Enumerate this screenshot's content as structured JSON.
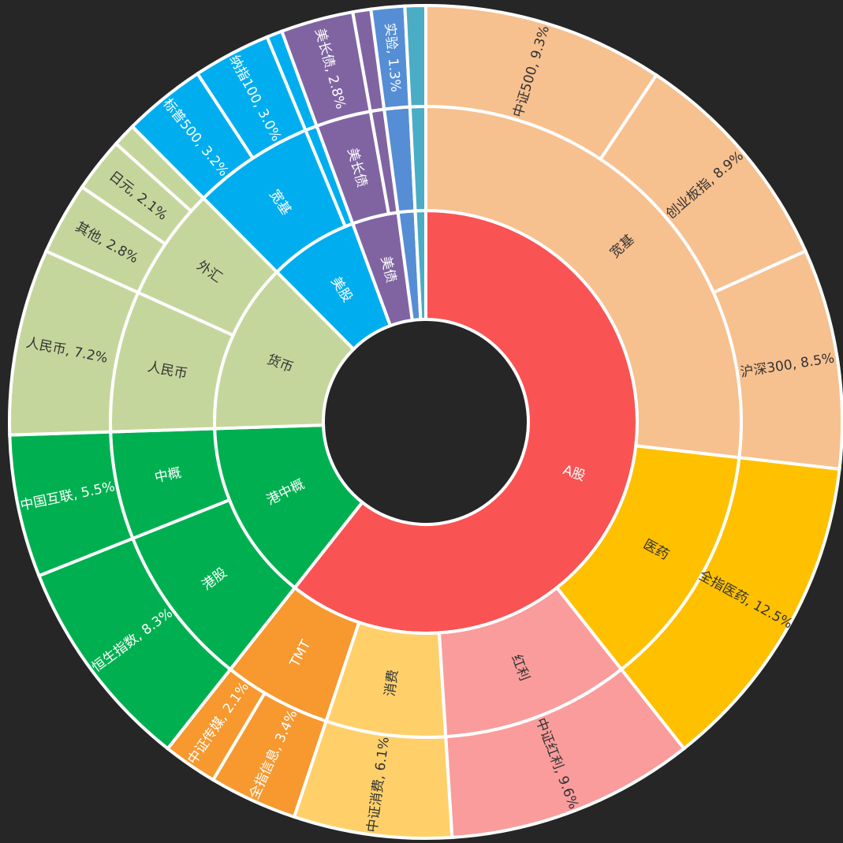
{
  "chart_data": {
    "type": "sunburst",
    "title": "",
    "rings": [
      {
        "label": "A股",
        "parent": null,
        "level": 1,
        "color": "#F95353",
        "text_color": "#FFFFFF"
      },
      {
        "label": "宽基",
        "parent": "A股",
        "level": 2,
        "color": "#F7C08F",
        "text_color": "#333333"
      },
      {
        "label": "中证500, 9.3%",
        "parent": "宽基",
        "level": 3,
        "value": 9.3,
        "color": "#F7C08F",
        "text_color": "#333333"
      },
      {
        "label": "创业板指, 8.9%",
        "parent": "宽基",
        "level": 3,
        "value": 8.9,
        "color": "#F7C08F",
        "text_color": "#333333"
      },
      {
        "label": "沪深300, 8.5%",
        "parent": "宽基",
        "level": 3,
        "value": 8.5,
        "color": "#F7C08F",
        "text_color": "#333333"
      },
      {
        "label": "医药",
        "parent": "A股",
        "level": 2,
        "color": "#FFC000",
        "text_color": "#333333"
      },
      {
        "label": "全指医药, 12.5%",
        "parent": "医药",
        "level": 3,
        "value": 12.5,
        "color": "#FFC000",
        "text_color": "#333333"
      },
      {
        "label": "红利",
        "parent": "A股",
        "level": 2,
        "color": "#FA9C9C",
        "text_color": "#333333"
      },
      {
        "label": "中证红利, 9.6%",
        "parent": "红利",
        "level": 3,
        "value": 9.6,
        "color": "#FA9C9C",
        "text_color": "#333333"
      },
      {
        "label": "消费",
        "parent": "A股",
        "level": 2,
        "color": "#FFD06A",
        "text_color": "#333333"
      },
      {
        "label": "中证消费, 6.1%",
        "parent": "消费",
        "level": 3,
        "value": 6.1,
        "color": "#FFD06A",
        "text_color": "#333333"
      },
      {
        "label": "TMT",
        "parent": "A股",
        "level": 2,
        "color": "#F7992F",
        "text_color": "#FFFFFF"
      },
      {
        "label": "全指信息, 3.4%",
        "parent": "TMT",
        "level": 3,
        "value": 3.4,
        "color": "#F7992F",
        "text_color": "#FFFFFF"
      },
      {
        "label": "中证传媒, 2.1%",
        "parent": "TMT",
        "level": 3,
        "value": 2.1,
        "color": "#F7992F",
        "text_color": "#FFFFFF"
      },
      {
        "label": "港中概",
        "parent": null,
        "level": 1,
        "color": "#00B050",
        "text_color": "#FFFFFF"
      },
      {
        "label": "港股",
        "parent": "港中概",
        "level": 2,
        "color": "#00B050",
        "text_color": "#FFFFFF"
      },
      {
        "label": "恒生指数, 8.3%",
        "parent": "港股",
        "level": 3,
        "value": 8.3,
        "color": "#00B050",
        "text_color": "#FFFFFF"
      },
      {
        "label": "中概",
        "parent": "港中概",
        "level": 2,
        "color": "#00B050",
        "text_color": "#FFFFFF"
      },
      {
        "label": "中国互联, 5.5%",
        "parent": "中概",
        "level": 3,
        "value": 5.5,
        "color": "#00B050",
        "text_color": "#FFFFFF"
      },
      {
        "label": "货币",
        "parent": null,
        "level": 1,
        "color": "#C5D69C",
        "text_color": "#333333"
      },
      {
        "label": "人民币",
        "parent": "货币",
        "level": 2,
        "color": "#C5D69C",
        "text_color": "#333333"
      },
      {
        "label": "人民币, 7.2%",
        "parent": "人民币",
        "level": 3,
        "value": 7.2,
        "color": "#C5D69C",
        "text_color": "#333333"
      },
      {
        "label": "外汇",
        "parent": "货币",
        "level": 2,
        "color": "#C5D69C",
        "text_color": "#333333"
      },
      {
        "label": "其他, 2.8%",
        "parent": "外汇",
        "level": 3,
        "value": 2.8,
        "color": "#C5D69C",
        "text_color": "#333333"
      },
      {
        "label": "日元, 2.1%",
        "parent": "外汇",
        "level": 3,
        "value": 2.1,
        "color": "#C5D69C",
        "text_color": "#333333"
      },
      {
        "label": "",
        "parent": "外汇",
        "level": 3,
        "value": 0.9,
        "color": "#C5D69C",
        "text_color": "#333333"
      },
      {
        "label": "美股",
        "parent": null,
        "level": 1,
        "color": "#00AEEF",
        "text_color": "#FFFFFF"
      },
      {
        "label": "宽基",
        "parent": "美股",
        "level": 2,
        "color": "#00AEEF",
        "text_color": "#FFFFFF"
      },
      {
        "label": "标普500, 3.2%",
        "parent": "宽基",
        "level": 3,
        "value": 3.2,
        "color": "#00AEEF",
        "text_color": "#FFFFFF"
      },
      {
        "label": "纳指100, 3.0%",
        "parent": "宽基",
        "level": 3,
        "value": 3.0,
        "color": "#00AEEF",
        "text_color": "#FFFFFF"
      },
      {
        "label": "",
        "parent": "美股",
        "level": 2,
        "color": "#00AEEF",
        "text_color": "#FFFFFF"
      },
      {
        "label": "",
        "parent": "",
        "level": 3,
        "value": 0.6,
        "color": "#00AEEF",
        "text_color": "#FFFFFF"
      },
      {
        "label": "美债",
        "parent": null,
        "level": 1,
        "color": "#8064A2",
        "text_color": "#FFFFFF"
      },
      {
        "label": "美长债",
        "parent": "美债",
        "level": 2,
        "color": "#8064A2",
        "text_color": "#FFFFFF"
      },
      {
        "label": "美长债, 2.8%",
        "parent": "美长债",
        "level": 3,
        "value": 2.8,
        "color": "#8064A2",
        "text_color": "#FFFFFF"
      },
      {
        "label": "",
        "parent": "美债",
        "level": 2,
        "color": "#8064A2",
        "text_color": "#FFFFFF"
      },
      {
        "label": "",
        "parent": "",
        "level": 3,
        "value": 0.7,
        "color": "#8064A2",
        "text_color": "#FFFFFF"
      },
      {
        "label": "",
        "parent": null,
        "level": 1,
        "color": "#558ED5",
        "text_color": "#FFFFFF"
      },
      {
        "label": "",
        "parent": "",
        "level": 2,
        "color": "#558ED5",
        "text_color": "#FFFFFF"
      },
      {
        "label": "实验, 1.3%",
        "parent": "",
        "level": 3,
        "value": 1.3,
        "color": "#558ED5",
        "text_color": "#FFFFFF"
      },
      {
        "label": "",
        "parent": null,
        "level": 1,
        "color": "#4BACC6",
        "text_color": "#FFFFFF"
      },
      {
        "label": "",
        "parent": "",
        "level": 2,
        "color": "#4BACC6",
        "text_color": "#FFFFFF"
      },
      {
        "label": "",
        "parent": "",
        "level": 3,
        "value": 0.8,
        "color": "#4BACC6",
        "text_color": "#FFFFFF"
      }
    ]
  }
}
